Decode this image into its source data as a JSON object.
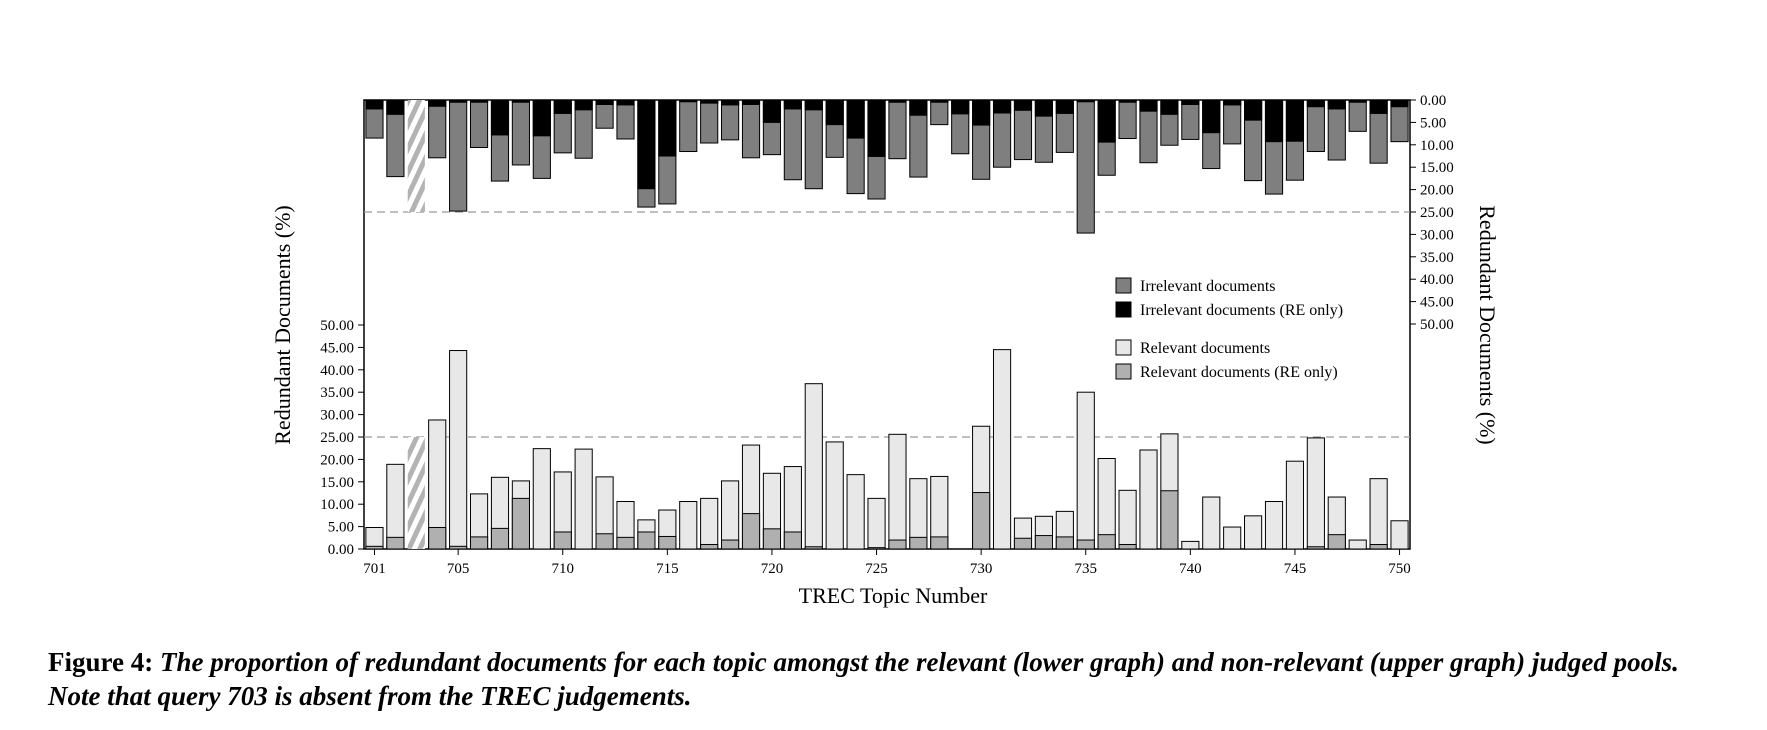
{
  "chart_data": {
    "type": "bar",
    "xlabel": "TREC Topic Number",
    "ylabel_left": "Redundant Documents (%)",
    "ylabel_right": "Redundant Documents (%)",
    "x_tick_labels": [
      "701",
      "705",
      "710",
      "715",
      "720",
      "725",
      "730",
      "735",
      "740",
      "745",
      "750"
    ],
    "y_tick_labels_lower": [
      "0.00",
      "5.00",
      "10.00",
      "15.00",
      "20.00",
      "25.00",
      "30.00",
      "35.00",
      "40.00",
      "45.00",
      "50.00"
    ],
    "y_tick_labels_upper": [
      "0.00",
      "5.00",
      "10.00",
      "15.00",
      "20.00",
      "25.00",
      "30.00",
      "35.00",
      "40.00",
      "45.00",
      "50.00"
    ],
    "topics": [
      701,
      702,
      703,
      704,
      705,
      706,
      707,
      708,
      709,
      710,
      711,
      712,
      713,
      714,
      715,
      716,
      717,
      718,
      719,
      720,
      721,
      722,
      723,
      724,
      725,
      726,
      727,
      728,
      729,
      730,
      731,
      732,
      733,
      734,
      735,
      736,
      737,
      738,
      739,
      740,
      741,
      742,
      743,
      744,
      745,
      746,
      747,
      748,
      749,
      750
    ],
    "absent_topic": 703,
    "reference_line": 25,
    "ylim_lower": [
      0,
      50
    ],
    "ylim_upper": [
      0,
      50
    ],
    "upper_panel_inverted": true,
    "series": [
      {
        "name": "Irrelevant documents",
        "panel": "upper",
        "color": "#7f7f7f",
        "values": [
          8.5,
          17.1,
          null,
          12.9,
          24.8,
          10.6,
          18.1,
          14.5,
          17.5,
          11.8,
          13.0,
          6.3,
          8.7,
          23.9,
          23.2,
          11.5,
          9.6,
          8.9,
          12.9,
          12.2,
          17.8,
          19.8,
          12.8,
          20.9,
          22.1,
          13.1,
          17.2,
          5.5,
          12.0,
          17.7,
          15.0,
          13.3,
          13.9,
          11.7,
          29.7,
          16.8,
          8.6,
          14.0,
          10.1,
          8.8,
          15.3,
          9.8,
          18.0,
          21.0,
          17.9,
          11.5,
          13.4,
          7.0,
          14.1,
          9.3
        ]
      },
      {
        "name": "Irrelevant documents (RE only)",
        "panel": "upper",
        "color": "#000000",
        "values": [
          2.0,
          3.2,
          null,
          1.4,
          0.5,
          0.5,
          7.8,
          0.5,
          8.0,
          3.0,
          2.2,
          1.0,
          1.1,
          19.8,
          12.5,
          0.4,
          0.7,
          1.1,
          1.0,
          5.0,
          2.0,
          2.2,
          5.5,
          8.5,
          12.6,
          0.5,
          3.4,
          0.5,
          3.1,
          5.6,
          2.9,
          2.3,
          3.6,
          3.0,
          0.4,
          9.4,
          0.5,
          2.5,
          3.2,
          1.0,
          7.3,
          1.1,
          4.5,
          9.3,
          9.2,
          1.5,
          2.0,
          0.5,
          3.0,
          1.5
        ]
      },
      {
        "name": "Relevant documents",
        "panel": "lower",
        "color": "#e8e8e8",
        "values": [
          4.8,
          18.9,
          null,
          28.8,
          44.3,
          12.3,
          16.0,
          15.2,
          22.4,
          17.2,
          22.3,
          16.1,
          10.6,
          6.5,
          8.7,
          10.6,
          11.3,
          15.2,
          23.2,
          16.9,
          18.4,
          36.9,
          23.9,
          16.6,
          11.3,
          25.6,
          15.7,
          16.2,
          0,
          27.4,
          44.5,
          6.9,
          7.3,
          8.4,
          35.0,
          20.2,
          13.1,
          22.1,
          25.7,
          1.7,
          11.6,
          4.9,
          7.4,
          10.6,
          19.6,
          24.8,
          11.6,
          2.0,
          15.7,
          6.3
        ]
      },
      {
        "name": "Relevant documents (RE only)",
        "panel": "lower",
        "color": "#b0b0b0",
        "values": [
          0.6,
          2.6,
          null,
          4.8,
          0.6,
          2.7,
          4.6,
          11.3,
          0,
          3.8,
          0,
          3.4,
          2.6,
          3.8,
          2.8,
          0,
          1.0,
          2.0,
          7.9,
          4.5,
          3.8,
          0.5,
          0,
          0,
          0.3,
          2.0,
          2.6,
          2.7,
          0,
          12.6,
          0,
          2.4,
          3.0,
          2.7,
          2.0,
          3.2,
          1.0,
          0,
          13.0,
          0,
          0,
          0,
          0,
          0,
          0,
          0.5,
          3.2,
          0,
          1.0,
          0
        ]
      }
    ]
  },
  "legend": {
    "items": [
      {
        "label": "Irrelevant documents",
        "color": "#7f7f7f"
      },
      {
        "label": "Irrelevant documents (RE only)",
        "color": "#000000"
      },
      {
        "label": "Relevant documents",
        "color": "#e8e8e8"
      },
      {
        "label": "Relevant documents (RE only)",
        "color": "#b0b0b0"
      }
    ]
  },
  "caption": {
    "label": "Figure 4:",
    "text": "The proportion of redundant documents for each topic amongst the relevant (lower graph) and non-relevant (upper graph) judged pools. Note that query 703 is absent from the TREC judgements."
  }
}
